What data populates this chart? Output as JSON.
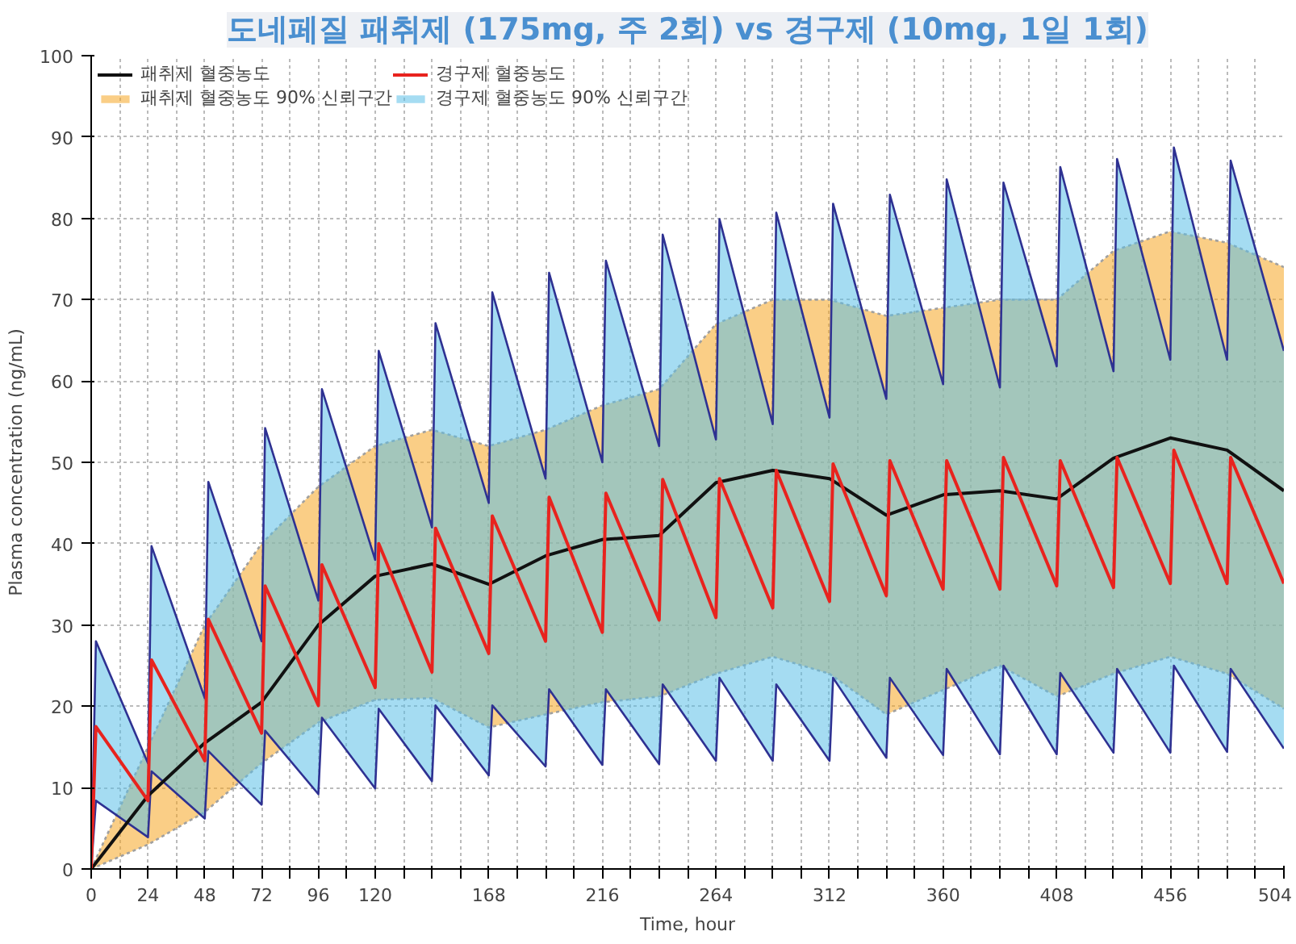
{
  "chart_data": {
    "type": "line",
    "title": "도네페질 패취제 (175mg, 주 2회) vs 경구제 (10mg, 1일 1회)",
    "xlabel": "Time, hour",
    "ylabel": "Plasma concentration (ng/mL)",
    "xlim": [
      0,
      504
    ],
    "ylim": [
      0,
      100
    ],
    "xticks": [
      0,
      {
        "value": 12,
        "label": null
      },
      24,
      {
        "value": 36,
        "label": null
      },
      48,
      {
        "value": 60,
        "label": null
      },
      72,
      {
        "value": 84,
        "label": null
      },
      96,
      {
        "value": 108,
        "label": null
      },
      120,
      {
        "value": 132,
        "label": null
      },
      {
        "value": 144,
        "label": null
      },
      {
        "value": 156,
        "label": null
      },
      168,
      {
        "value": 180,
        "label": null
      },
      {
        "value": 192,
        "label": null
      },
      {
        "value": 204,
        "label": null
      },
      216,
      {
        "value": 228,
        "label": null
      },
      {
        "value": 240,
        "label": null
      },
      {
        "value": 252,
        "label": null
      },
      264,
      {
        "value": 276,
        "label": null
      },
      {
        "value": 288,
        "label": null
      },
      {
        "value": 300,
        "label": null
      },
      312,
      {
        "value": 324,
        "label": null
      },
      {
        "value": 336,
        "label": null
      },
      {
        "value": 348,
        "label": null
      },
      360,
      {
        "value": 372,
        "label": null
      },
      {
        "value": 384,
        "label": null
      },
      {
        "value": 396,
        "label": null
      },
      408,
      {
        "value": 420,
        "label": null
      },
      {
        "value": 432,
        "label": null
      },
      {
        "value": 444,
        "label": null
      },
      456,
      {
        "value": 468,
        "label": null
      },
      {
        "value": 480,
        "label": null
      },
      {
        "value": 492,
        "label": null
      },
      504
    ],
    "yticks": [
      0,
      10,
      20,
      30,
      40,
      50,
      60,
      70,
      80,
      90,
      100
    ],
    "grid": true,
    "line_style": "solid",
    "legend": "top left",
    "series": [
      {
        "name": "패취제 혈중농도 90% 신뢰구간",
        "type": "area",
        "color": "#f5a623",
        "x": [
          0,
          24,
          48,
          72,
          96,
          120,
          144,
          168,
          192,
          216,
          240,
          264,
          288,
          312,
          336,
          360,
          384,
          408,
          432,
          456,
          480,
          504
        ],
        "values": [
          0,
          15,
          30,
          40,
          47,
          52,
          54,
          52,
          54,
          57,
          59,
          67,
          70,
          70,
          68,
          69,
          70,
          70,
          76,
          78.4,
          77,
          74
        ]
      },
      {
        "color": "#a0a0a0",
        "line_style": "dotted",
        "x": [
          0,
          24,
          48,
          72,
          96,
          120,
          144,
          168,
          192,
          216,
          240,
          264,
          288,
          312,
          336,
          360,
          384,
          408,
          432,
          456,
          480,
          504
        ],
        "values": [
          0,
          3,
          7,
          13,
          18,
          20.8,
          21,
          17.4,
          19,
          20.5,
          21.2,
          24,
          26.1,
          24,
          19,
          22,
          25,
          21.2,
          24,
          26.1,
          24,
          19.7
        ]
      },
      {
        "name": "경구제 혈중농도 90% 신뢰구간",
        "type": "area",
        "color": "#5bbfe8",
        "x": [
          0,
          2,
          24,
          25.5,
          48,
          49.5,
          72,
          73.5,
          96,
          97.5,
          120,
          121.5,
          144,
          145.5,
          168,
          169.5,
          192,
          193.5,
          216,
          217.5,
          240,
          241.5,
          264,
          265.5,
          288,
          289.5,
          312,
          313.5,
          336,
          337.5,
          360,
          361.5,
          384,
          385.5,
          408,
          409.5,
          432,
          433.5,
          456,
          457.5,
          480,
          481.5,
          504
        ],
        "values": [
          0,
          28,
          13,
          39.7,
          21,
          47.6,
          28,
          54.2,
          33,
          59,
          38,
          63.7,
          42,
          67.1,
          45,
          70.9,
          48,
          73.3,
          50,
          74.8,
          52,
          78,
          52.8,
          79.9,
          54.7,
          80.7,
          55.5,
          81.8,
          57.8,
          82.9,
          59.6,
          84.8,
          59.2,
          84.4,
          61.8,
          86.3,
          61.2,
          87.3,
          62.6,
          88.7,
          62.6,
          87.1,
          63.7
        ]
      },
      {
        "color": "#2e3192",
        "line_style": "solid",
        "x": [
          0,
          2,
          24,
          25.5,
          48,
          49.5,
          72,
          73.5,
          96,
          97.5,
          120,
          121.5,
          144,
          145.5,
          168,
          169.5,
          192,
          193.5,
          216,
          217.5,
          240,
          241.5,
          264,
          265.5,
          288,
          289.5,
          312,
          313.5,
          336,
          337.5,
          360,
          361.5,
          384,
          385.5,
          408,
          409.5,
          432,
          433.5,
          456,
          457.5,
          480,
          481.5,
          504
        ],
        "values": [
          0,
          8.4,
          3.9,
          12,
          6.2,
          14.5,
          7.9,
          17,
          9.2,
          18.6,
          9.9,
          19.7,
          10.8,
          20.1,
          11.5,
          20.1,
          12.6,
          22.1,
          12.8,
          22.1,
          12.9,
          22.7,
          13.3,
          23.5,
          13.3,
          22.7,
          13.3,
          23.5,
          13.7,
          23.5,
          14,
          24.6,
          14.1,
          25,
          14.1,
          24.1,
          14.3,
          24.6,
          14.3,
          25,
          14.4,
          24.6,
          14.8
        ]
      },
      {
        "name": "패취제 혈중농도",
        "color": "#111111",
        "x": [
          0,
          24,
          48,
          72,
          96,
          120,
          144,
          168,
          192,
          216,
          240,
          264,
          288,
          312,
          336,
          360,
          384,
          408,
          432,
          456,
          480,
          504
        ],
        "values": [
          0,
          9,
          15.5,
          20.5,
          30,
          36,
          37.5,
          35,
          38.5,
          40.5,
          41,
          47.5,
          49,
          48,
          43.5,
          46,
          46.5,
          45.5,
          50.5,
          53,
          51.5,
          46.5
        ]
      },
      {
        "name": "경구제 혈중농도",
        "color": "#e8231e",
        "x": [
          0,
          2,
          24,
          25.5,
          48,
          49.5,
          72,
          73.5,
          96,
          97.5,
          120,
          121.5,
          144,
          145.5,
          168,
          169.5,
          192,
          193.5,
          216,
          217.5,
          240,
          241.5,
          264,
          265.5,
          288,
          289.5,
          312,
          313.5,
          336,
          337.5,
          360,
          361.5,
          384,
          385.5,
          408,
          409.5,
          432,
          433.5,
          456,
          457.5,
          480,
          481.5,
          504
        ],
        "values": [
          0,
          17.5,
          8.4,
          25.7,
          13.3,
          30.7,
          16.7,
          34.8,
          20.1,
          37.4,
          22.3,
          40,
          24.2,
          41.9,
          26.5,
          43.4,
          28,
          45.7,
          29.1,
          46.2,
          30.6,
          47.9,
          30.9,
          48,
          32.1,
          49,
          32.9,
          49.8,
          33.6,
          50.2,
          34.4,
          50.2,
          34.4,
          50.6,
          34.8,
          50.2,
          34.6,
          50.6,
          35.1,
          51.5,
          35.1,
          50.6,
          35.1
        ]
      }
    ]
  }
}
